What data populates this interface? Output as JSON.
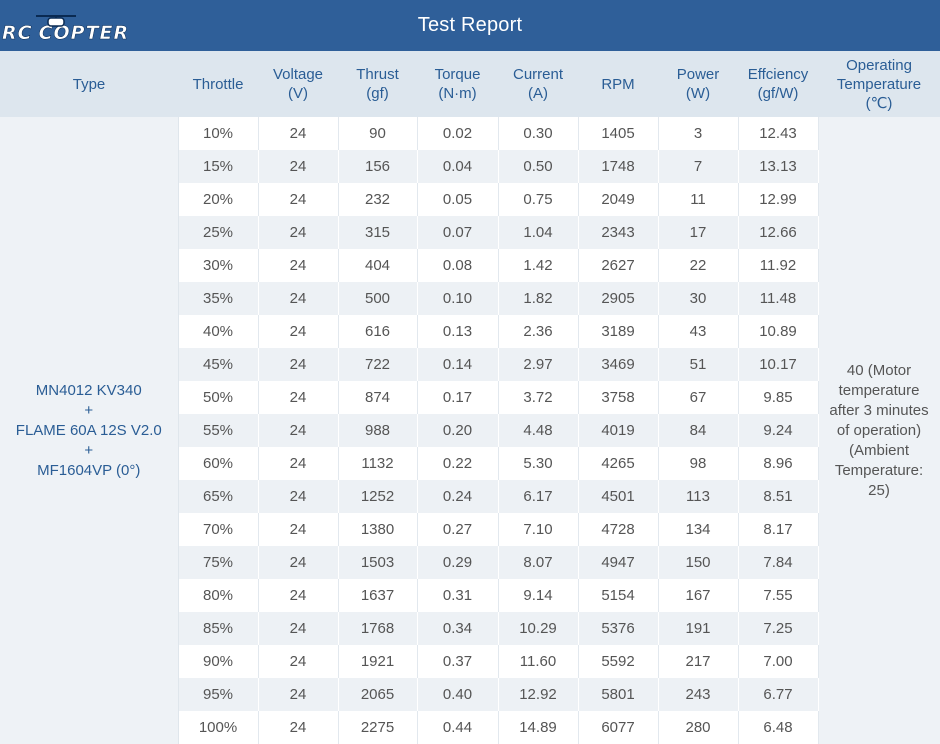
{
  "header": {
    "title": "Test Report",
    "logo_rc": "RC",
    "logo_copter": "COPTER",
    "logo_icon": "quadcopter-icon",
    "bg_color": "#2f5f99"
  },
  "columns": [
    [
      "Type"
    ],
    [
      "Throttle"
    ],
    [
      "Voltage",
      "(V)"
    ],
    [
      "Thrust",
      "(gf)"
    ],
    [
      "Torque",
      "(N·m)"
    ],
    [
      "Current",
      "(A)"
    ],
    [
      "RPM"
    ],
    [
      "Power",
      "(W)"
    ],
    [
      "Effciency",
      "(gf/W)"
    ],
    [
      "Operating",
      "Temperature",
      "(℃)"
    ]
  ],
  "type_lines": [
    "MN4012 KV340",
    "+",
    "FLAME 60A 12S V2.0",
    "+",
    "MF1604VP (0°)"
  ],
  "temperature_lines": [
    "40 (Motor",
    "temperature",
    "after 3 minutes",
    "of operation)",
    "(Ambient",
    "Temperature:",
    "25)"
  ],
  "rows": [
    [
      "10%",
      "24",
      "90",
      "0.02",
      "0.30",
      "1405",
      "3",
      "12.43"
    ],
    [
      "15%",
      "24",
      "156",
      "0.04",
      "0.50",
      "1748",
      "7",
      "13.13"
    ],
    [
      "20%",
      "24",
      "232",
      "0.05",
      "0.75",
      "2049",
      "11",
      "12.99"
    ],
    [
      "25%",
      "24",
      "315",
      "0.07",
      "1.04",
      "2343",
      "17",
      "12.66"
    ],
    [
      "30%",
      "24",
      "404",
      "0.08",
      "1.42",
      "2627",
      "22",
      "11.92"
    ],
    [
      "35%",
      "24",
      "500",
      "0.10",
      "1.82",
      "2905",
      "30",
      "11.48"
    ],
    [
      "40%",
      "24",
      "616",
      "0.13",
      "2.36",
      "3189",
      "43",
      "10.89"
    ],
    [
      "45%",
      "24",
      "722",
      "0.14",
      "2.97",
      "3469",
      "51",
      "10.17"
    ],
    [
      "50%",
      "24",
      "874",
      "0.17",
      "3.72",
      "3758",
      "67",
      "9.85"
    ],
    [
      "55%",
      "24",
      "988",
      "0.20",
      "4.48",
      "4019",
      "84",
      "9.24"
    ],
    [
      "60%",
      "24",
      "1132",
      "0.22",
      "5.30",
      "4265",
      "98",
      "8.96"
    ],
    [
      "65%",
      "24",
      "1252",
      "0.24",
      "6.17",
      "4501",
      "113",
      "8.51"
    ],
    [
      "70%",
      "24",
      "1380",
      "0.27",
      "7.10",
      "4728",
      "134",
      "8.17"
    ],
    [
      "75%",
      "24",
      "1503",
      "0.29",
      "8.07",
      "4947",
      "150",
      "7.84"
    ],
    [
      "80%",
      "24",
      "1637",
      "0.31",
      "9.14",
      "5154",
      "167",
      "7.55"
    ],
    [
      "85%",
      "24",
      "1768",
      "0.34",
      "10.29",
      "5376",
      "191",
      "7.25"
    ],
    [
      "90%",
      "24",
      "1921",
      "0.37",
      "11.60",
      "5592",
      "217",
      "7.00"
    ],
    [
      "95%",
      "24",
      "2065",
      "0.40",
      "12.92",
      "5801",
      "243",
      "6.77"
    ],
    [
      "100%",
      "24",
      "2275",
      "0.44",
      "14.89",
      "6077",
      "280",
      "6.48"
    ]
  ]
}
